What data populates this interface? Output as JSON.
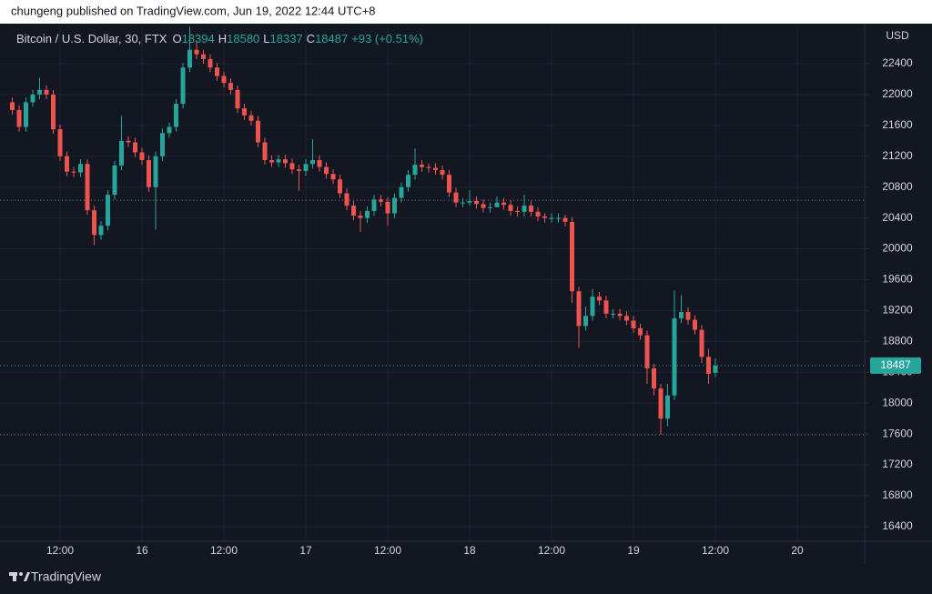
{
  "header": "chungeng published on TradingView.com, Jun 19, 2022 12:44 UTC+8",
  "brand": "TradingView",
  "chart_data": {
    "type": "candlestick",
    "title": "Bitcoin / U.S. Dollar, 30, FTX",
    "ohlc_labels": [
      "O",
      "H",
      "L",
      "C"
    ],
    "change_label": "+93 (+0.51%)",
    "currency": "USD",
    "categories": [
      null,
      null,
      null,
      null,
      null,
      null,
      null,
      "12:00",
      null,
      null,
      null,
      null,
      null,
      null,
      null,
      null,
      null,
      null,
      null,
      "16",
      null,
      null,
      null,
      null,
      null,
      null,
      null,
      null,
      null,
      null,
      null,
      "12:00",
      null,
      null,
      null,
      null,
      null,
      null,
      null,
      null,
      null,
      null,
      null,
      "17",
      null,
      null,
      null,
      null,
      null,
      null,
      null,
      null,
      null,
      null,
      null,
      "12:00",
      null,
      null,
      null,
      null,
      null,
      null,
      null,
      null,
      null,
      null,
      null,
      "18",
      null,
      null,
      null,
      null,
      null,
      null,
      null,
      null,
      null,
      null,
      null,
      "12:00",
      null,
      null,
      null,
      null,
      null,
      null,
      null,
      null,
      null,
      null,
      null,
      "19",
      null,
      null,
      null,
      null,
      null,
      null,
      null,
      null,
      null,
      null,
      null,
      "12:00",
      null,
      null,
      null,
      null,
      null,
      null,
      null,
      null,
      null,
      null,
      null,
      "20",
      null,
      null,
      null,
      null,
      null,
      null,
      null,
      null,
      null
    ],
    "open": [
      21900,
      21800,
      21580,
      21900,
      22000,
      22060,
      22000,
      21550,
      21200,
      21000,
      20990,
      21100,
      20500,
      20180,
      20300,
      20700,
      21080,
      21400,
      21380,
      21250,
      21150,
      20800,
      21200,
      21500,
      21580,
      21880,
      22350,
      22580,
      22520,
      22460,
      22350,
      22240,
      22150,
      22060,
      21820,
      21730,
      21660,
      21380,
      21150,
      21120,
      21160,
      21110,
      21030,
      21010,
      21100,
      21150,
      21060,
      20970,
      20900,
      20720,
      20560,
      20430,
      20400,
      20490,
      20640,
      20610,
      20460,
      20660,
      20800,
      20960,
      21090,
      21060,
      21050,
      21020,
      20960,
      20730,
      20600,
      20600,
      20620,
      20580,
      20530,
      20540,
      20600,
      20570,
      20490,
      20480,
      20560,
      20480,
      20420,
      20400,
      20400,
      20400,
      20350,
      19450,
      19000,
      19130,
      19380,
      19330,
      19160,
      19160,
      19130,
      19070,
      18970,
      18880,
      18450,
      18190,
      17800,
      18100,
      19100,
      19180,
      19080,
      18950,
      18600,
      18394,
      null,
      null,
      null,
      null,
      null,
      null,
      null,
      null,
      null,
      null,
      null,
      null,
      null,
      null,
      null,
      null,
      null,
      null,
      null,
      null,
      null
    ],
    "high": [
      21960,
      21860,
      21960,
      22060,
      22220,
      22120,
      22060,
      21610,
      21260,
      21060,
      21160,
      21160,
      20560,
      20360,
      20760,
      21140,
      21720,
      21460,
      21440,
      21310,
      21210,
      21260,
      21560,
      21640,
      21940,
      22410,
      22880,
      22700,
      22580,
      22520,
      22410,
      22300,
      22210,
      22120,
      21880,
      21790,
      21720,
      21440,
      21210,
      21220,
      21220,
      21170,
      21090,
      21160,
      21420,
      21210,
      21120,
      21030,
      20960,
      20780,
      20620,
      20490,
      20550,
      20700,
      20700,
      20670,
      20720,
      20860,
      21020,
      21300,
      21150,
      21110,
      21110,
      21080,
      21020,
      20790,
      20660,
      20760,
      20680,
      20640,
      20600,
      20680,
      20660,
      20630,
      20550,
      20700,
      20620,
      20540,
      20460,
      20460,
      20460,
      20440,
      20410,
      19510,
      19250,
      19480,
      19440,
      19390,
      19220,
      19220,
      19190,
      19130,
      19030,
      18940,
      18510,
      18250,
      18250,
      19460,
      19400,
      19240,
      19140,
      19010,
      18700,
      18580,
      null,
      null,
      null,
      null,
      null,
      null,
      null,
      null,
      null,
      null,
      null,
      null,
      null,
      null,
      null,
      null,
      null,
      null,
      null,
      null,
      null
    ],
    "low": [
      21740,
      21520,
      21520,
      21840,
      21940,
      21940,
      21490,
      21140,
      20940,
      20930,
      20930,
      20440,
      20050,
      20120,
      20240,
      20640,
      21020,
      21320,
      21190,
      21090,
      20740,
      20250,
      21140,
      21440,
      21520,
      21820,
      22290,
      22460,
      22400,
      22290,
      22180,
      22090,
      22000,
      21760,
      21670,
      21600,
      21320,
      21090,
      21060,
      21060,
      21050,
      20970,
      20750,
      20950,
      21040,
      21000,
      20910,
      20840,
      20660,
      20500,
      20370,
      20220,
      20340,
      20430,
      20550,
      20300,
      20400,
      20600,
      20740,
      20900,
      21000,
      20990,
      20960,
      20900,
      20670,
      20540,
      20540,
      20560,
      20520,
      20470,
      20470,
      20540,
      20510,
      20430,
      20420,
      20420,
      20420,
      20360,
      20340,
      20340,
      20340,
      20290,
      19300,
      18720,
      18940,
      19070,
      19270,
      19100,
      19100,
      19070,
      19010,
      18910,
      18820,
      18250,
      18100,
      17590,
      17700,
      18040,
      19040,
      19020,
      18890,
      18520,
      18250,
      18337,
      null,
      null,
      null,
      null,
      null,
      null,
      null,
      null,
      null,
      null,
      null,
      null,
      null,
      null,
      null,
      null,
      null,
      null,
      null,
      null,
      null
    ],
    "close": [
      21800,
      21580,
      21900,
      22000,
      22060,
      22000,
      21550,
      21200,
      21000,
      20990,
      21100,
      20500,
      20180,
      20300,
      20700,
      21080,
      21400,
      21380,
      21250,
      21150,
      20800,
      21200,
      21500,
      21580,
      21880,
      22350,
      22580,
      22520,
      22460,
      22350,
      22240,
      22150,
      22060,
      21820,
      21730,
      21660,
      21380,
      21150,
      21120,
      21160,
      21110,
      21030,
      21010,
      21100,
      21150,
      21060,
      20970,
      20900,
      20720,
      20560,
      20430,
      20400,
      20490,
      20640,
      20610,
      20460,
      20660,
      20800,
      20960,
      21090,
      21060,
      21050,
      21020,
      20960,
      20730,
      20600,
      20600,
      20620,
      20580,
      20530,
      20540,
      20600,
      20570,
      20490,
      20480,
      20560,
      20480,
      20420,
      20400,
      20400,
      20400,
      20350,
      19450,
      19000,
      19130,
      19380,
      19330,
      19160,
      19160,
      19130,
      19070,
      18970,
      18880,
      18450,
      18190,
      17800,
      18100,
      19100,
      19180,
      19080,
      18950,
      18600,
      18380,
      18487,
      null,
      null,
      null,
      null,
      null,
      null,
      null,
      null,
      null,
      null,
      null,
      null,
      null,
      null,
      null,
      null,
      null,
      null,
      null,
      null,
      null
    ],
    "up_color": "#26a69a",
    "down_color": "#ef5350",
    "ylim": [
      16210,
      22895
    ],
    "yticks": [
      16400,
      16800,
      17200,
      17600,
      18000,
      18400,
      18800,
      19200,
      19600,
      20000,
      20400,
      20800,
      21200,
      21600,
      22000,
      22400
    ],
    "hlines": [
      20630,
      17590
    ],
    "grid": true
  }
}
